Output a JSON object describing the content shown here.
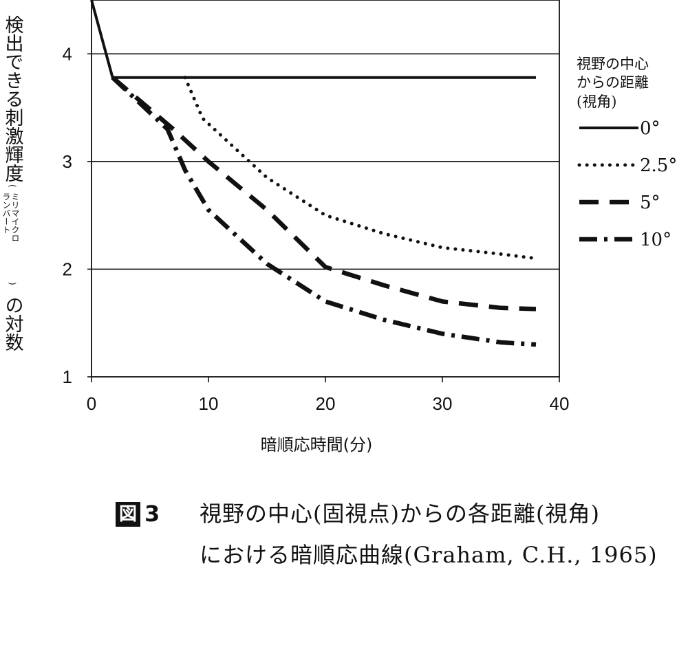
{
  "figure": {
    "badge": "図",
    "number": "3",
    "caption_line1": "視野の中心(固視点)からの各距離(視角)",
    "caption_line2": "における暗順応曲線(Graham, C.H., 1965)"
  },
  "chart_data": {
    "type": "line",
    "title": "",
    "xlabel": "暗順応時間(分)",
    "ylabel": "検出できる刺激輝度",
    "ylabel_unit": "ミリマイクロランバート",
    "ylabel_unit_line1": "ミリマイクロ",
    "ylabel_unit_line2": "ランバート",
    "ylabel_suffix": "の対数",
    "xlim": [
      0,
      40
    ],
    "ylim": [
      1,
      4.5
    ],
    "xticks": [
      0,
      10,
      20,
      30,
      40
    ],
    "yticks": [
      1,
      2,
      3,
      4
    ],
    "grid": "horizontal lines at y = 2, 3, 4",
    "legend": {
      "title_line1": "視野の中心",
      "title_line2": "からの距離",
      "title_line3": "(視角)",
      "placement": "right"
    },
    "series": [
      {
        "name": "0°",
        "style": "solid",
        "points": [
          [
            0,
            4.5
          ],
          [
            1.8,
            3.78
          ],
          [
            38,
            3.78
          ]
        ]
      },
      {
        "name": "2.5°",
        "style": "dotted",
        "points": [
          [
            8,
            3.78
          ],
          [
            9.5,
            3.4
          ],
          [
            12,
            3.15
          ],
          [
            15,
            2.85
          ],
          [
            20,
            2.5
          ],
          [
            25,
            2.33
          ],
          [
            30,
            2.2
          ],
          [
            35,
            2.14
          ],
          [
            38,
            2.1
          ]
        ]
      },
      {
        "name": "5°",
        "style": "dashed",
        "points": [
          [
            1.8,
            3.78
          ],
          [
            7,
            3.3
          ],
          [
            10,
            3.0
          ],
          [
            15,
            2.55
          ],
          [
            20,
            2.02
          ],
          [
            25,
            1.85
          ],
          [
            30,
            1.7
          ],
          [
            35,
            1.64
          ],
          [
            38,
            1.63
          ]
        ]
      },
      {
        "name": "10°",
        "style": "dashdot",
        "points": [
          [
            1.8,
            3.78
          ],
          [
            6.5,
            3.3
          ],
          [
            8,
            2.92
          ],
          [
            10,
            2.55
          ],
          [
            15,
            2.05
          ],
          [
            20,
            1.7
          ],
          [
            25,
            1.53
          ],
          [
            30,
            1.4
          ],
          [
            35,
            1.32
          ],
          [
            38,
            1.3
          ]
        ]
      }
    ]
  },
  "colors": {
    "ink": "#111111",
    "background": "#ffffff"
  }
}
